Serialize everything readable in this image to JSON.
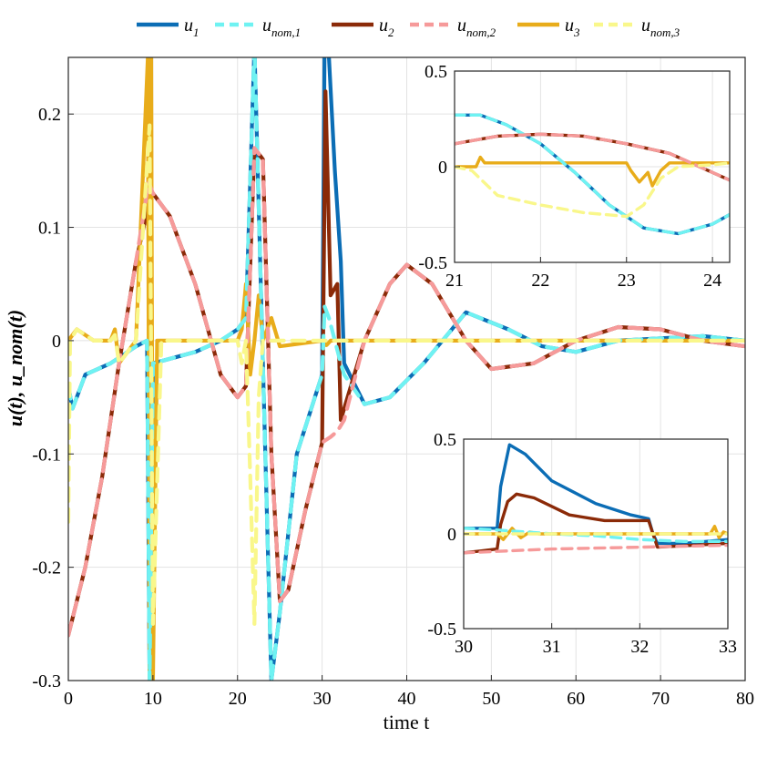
{
  "chart_data": [
    {
      "type": "line",
      "title": "",
      "xlabel": "time t",
      "ylabel": "u(t), u_nom(t)",
      "xlim": [
        0,
        80
      ],
      "ylim": [
        -0.3,
        0.25
      ],
      "xticks": [
        "0",
        "10",
        "20",
        "30",
        "40",
        "50",
        "60",
        "70",
        "80"
      ],
      "yticks": [
        "-0.3",
        "-0.2",
        "-0.1",
        "0",
        "0.1",
        "0.2"
      ],
      "grid": true,
      "legend_position": "top",
      "legend": [
        {
          "key": "u1",
          "name": "u",
          "sub": "1",
          "color": "#0b6db5",
          "dash": false
        },
        {
          "key": "unom1",
          "name": "u",
          "sub": "nom,1",
          "color": "#6ff2f2",
          "dash": true
        },
        {
          "key": "u2",
          "name": "u",
          "sub": "2",
          "color": "#8b2a08",
          "dash": false
        },
        {
          "key": "unom2",
          "name": "u",
          "sub": "nom,2",
          "color": "#f69a9a",
          "dash": true
        },
        {
          "key": "u3",
          "name": "u",
          "sub": "3",
          "color": "#e8ac1a",
          "dash": false
        },
        {
          "key": "unom3",
          "name": "u",
          "sub": "nom,3",
          "color": "#f9f78b",
          "dash": true
        }
      ],
      "series": [
        {
          "name": "u1",
          "x": [
            0,
            0.5,
            2,
            5,
            8,
            9.3,
            9.6,
            10,
            11,
            15,
            18,
            20,
            21,
            22,
            23,
            24,
            25,
            27,
            30,
            30.3,
            30.8,
            31.5,
            32.2,
            32.6,
            35,
            38,
            42,
            47,
            52,
            56,
            60,
            65,
            70,
            75,
            80
          ],
          "values": [
            -0.04,
            -0.06,
            -0.03,
            -0.02,
            -0.005,
            0.0,
            -0.3,
            -0.02,
            -0.018,
            -0.01,
            0.0,
            0.01,
            0.02,
            0.26,
            -0.02,
            -0.3,
            -0.24,
            -0.1,
            -0.03,
            0.27,
            0.25,
            0.15,
            0.07,
            -0.02,
            -0.056,
            -0.05,
            -0.02,
            0.025,
            0.01,
            -0.005,
            -0.01,
            0.0,
            0.002,
            0.004,
            0.0
          ]
        },
        {
          "name": "unom1",
          "x": [
            0,
            0.5,
            2,
            5,
            8,
            9.3,
            9.6,
            10,
            11,
            15,
            18,
            20,
            21,
            22,
            23,
            24,
            25,
            27,
            30,
            30.3,
            30.8,
            31.5,
            32.2,
            32.6,
            35,
            38,
            42,
            47,
            52,
            56,
            60,
            65,
            70,
            75,
            80
          ],
          "values": [
            -0.04,
            -0.06,
            -0.03,
            -0.02,
            -0.005,
            0.0,
            -0.3,
            -0.02,
            -0.018,
            -0.01,
            0.0,
            0.01,
            0.02,
            0.26,
            -0.02,
            -0.3,
            -0.24,
            -0.1,
            -0.03,
            0.03,
            0.02,
            0.0,
            -0.02,
            -0.03,
            -0.056,
            -0.05,
            -0.02,
            0.025,
            0.01,
            -0.005,
            -0.01,
            0.0,
            0.002,
            0.004,
            0.0
          ]
        },
        {
          "name": "u2",
          "x": [
            0,
            2,
            4,
            6,
            8,
            9.5,
            10,
            12,
            15,
            18,
            20,
            21,
            22,
            23,
            24,
            25,
            26,
            28,
            30,
            30.4,
            31,
            31.8,
            32.2,
            32.6,
            35,
            38,
            40,
            43,
            47,
            50,
            55,
            60,
            65,
            70,
            75,
            80
          ],
          "values": [
            -0.26,
            -0.2,
            -0.12,
            -0.02,
            0.07,
            0.12,
            0.13,
            0.11,
            0.05,
            -0.03,
            -0.05,
            -0.04,
            0.17,
            0.16,
            -0.1,
            -0.23,
            -0.22,
            -0.15,
            -0.09,
            0.22,
            0.04,
            0.05,
            -0.07,
            -0.06,
            0.0,
            0.05,
            0.067,
            0.05,
            0.0,
            -0.025,
            -0.02,
            0.0,
            0.012,
            0.01,
            0.0,
            -0.005
          ]
        },
        {
          "name": "unom2",
          "x": [
            0,
            2,
            4,
            6,
            8,
            9.5,
            10,
            12,
            15,
            18,
            20,
            21,
            22,
            23,
            24,
            25,
            26,
            28,
            30,
            30.4,
            31,
            31.8,
            32.2,
            32.6,
            35,
            38,
            40,
            43,
            47,
            50,
            55,
            60,
            65,
            70,
            75,
            80
          ],
          "values": [
            -0.26,
            -0.2,
            -0.12,
            -0.02,
            0.07,
            0.14,
            0.13,
            0.11,
            0.05,
            -0.03,
            -0.05,
            -0.04,
            0.17,
            0.16,
            -0.1,
            -0.23,
            -0.22,
            -0.15,
            -0.09,
            -0.088,
            -0.085,
            -0.08,
            -0.075,
            -0.07,
            0.0,
            0.05,
            0.067,
            0.05,
            0.0,
            -0.025,
            -0.02,
            0.0,
            0.012,
            0.01,
            0.0,
            -0.005
          ]
        },
        {
          "name": "u3",
          "x": [
            0,
            1,
            3,
            5,
            5.5,
            6,
            8,
            9.4,
            9.6,
            9.8,
            10,
            10.5,
            12,
            20,
            20.5,
            21,
            21.5,
            22,
            22.5,
            23,
            24,
            25,
            30,
            30.5,
            31,
            32,
            33,
            35,
            40,
            80
          ],
          "values": [
            0.0,
            0.01,
            0.0,
            0.0,
            0.01,
            -0.02,
            0.0,
            0.25,
            -0.3,
            0.25,
            -0.3,
            0.0,
            0.0,
            0.0,
            0.01,
            0.05,
            -0.03,
            0.0,
            0.04,
            0.0,
            0.02,
            -0.005,
            0.0,
            -0.004,
            0.0,
            0.0,
            0.0,
            0.0,
            0.0,
            0.0
          ]
        },
        {
          "name": "unom3",
          "x": [
            0,
            0.2,
            1,
            3,
            5,
            5.5,
            6,
            8,
            9.6,
            10,
            11,
            15,
            20,
            20.5,
            21,
            21.5,
            22,
            22.5,
            23,
            24,
            25,
            30,
            35,
            40,
            80
          ],
          "values": [
            -0.16,
            0.0,
            0.01,
            0.0,
            0.0,
            0.005,
            -0.02,
            0.0,
            0.19,
            -0.25,
            0.0,
            0.0,
            0.0,
            -0.02,
            0.0,
            -0.12,
            -0.25,
            -0.05,
            0.0,
            0.0,
            0.0,
            0.0,
            0.0,
            0.0,
            0.0
          ]
        }
      ]
    },
    {
      "type": "line",
      "title": "",
      "inset": "zoom t = 21 to 24.2",
      "xlim": [
        21,
        24.2
      ],
      "ylim": [
        -0.5,
        0.5
      ],
      "xticks": [
        "21",
        "22",
        "23",
        "24"
      ],
      "yticks": [
        "-0.5",
        "0",
        "0.5"
      ],
      "grid": true,
      "series": [
        {
          "name": "u1",
          "x": [
            21,
            21.3,
            21.6,
            22,
            22.4,
            22.8,
            23.2,
            23.6,
            24,
            24.2
          ],
          "values": [
            0.27,
            0.27,
            0.22,
            0.12,
            -0.03,
            -0.2,
            -0.32,
            -0.35,
            -0.3,
            -0.25
          ]
        },
        {
          "name": "unom1",
          "x": [
            21,
            21.3,
            21.6,
            22,
            22.4,
            22.8,
            23.2,
            23.6,
            24,
            24.2
          ],
          "values": [
            0.27,
            0.27,
            0.22,
            0.12,
            -0.03,
            -0.2,
            -0.32,
            -0.35,
            -0.3,
            -0.25
          ]
        },
        {
          "name": "u2",
          "x": [
            21,
            21.5,
            22,
            22.5,
            23,
            23.5,
            24,
            24.2
          ],
          "values": [
            0.12,
            0.16,
            0.17,
            0.16,
            0.12,
            0.07,
            -0.03,
            -0.07
          ]
        },
        {
          "name": "unom2",
          "x": [
            21,
            21.5,
            22,
            22.5,
            23,
            23.5,
            24,
            24.2
          ],
          "values": [
            0.12,
            0.16,
            0.17,
            0.16,
            0.12,
            0.07,
            -0.03,
            -0.07
          ]
        },
        {
          "name": "u3",
          "x": [
            21,
            21.25,
            21.3,
            21.35,
            21.5,
            22,
            23,
            23.05,
            23.15,
            23.25,
            23.3,
            23.4,
            23.5,
            24,
            24.2
          ],
          "values": [
            0.0,
            0.0,
            0.05,
            0.02,
            0.02,
            0.02,
            0.02,
            -0.02,
            -0.08,
            -0.03,
            -0.1,
            -0.02,
            0.02,
            0.02,
            0.02
          ]
        },
        {
          "name": "unom3",
          "x": [
            21,
            21.2,
            21.5,
            22,
            22.5,
            23,
            23.2,
            23.4,
            23.6,
            24,
            24.2
          ],
          "values": [
            0.0,
            -0.02,
            -0.15,
            -0.2,
            -0.24,
            -0.26,
            -0.2,
            -0.06,
            0.0,
            0.01,
            0.02
          ]
        }
      ]
    },
    {
      "type": "line",
      "title": "",
      "inset": "zoom t = 30 to 33",
      "xlim": [
        30,
        33
      ],
      "ylim": [
        -0.5,
        0.5
      ],
      "xticks": [
        "30",
        "31",
        "32",
        "33"
      ],
      "yticks": [
        "-0.5",
        "0",
        "0.5"
      ],
      "grid": true,
      "series": [
        {
          "name": "u1",
          "x": [
            30,
            30.38,
            30.42,
            30.52,
            30.7,
            31,
            31.5,
            31.9,
            32.1,
            32.15,
            32.2,
            32.5,
            33
          ],
          "values": [
            0.03,
            0.03,
            0.25,
            0.47,
            0.42,
            0.28,
            0.16,
            0.1,
            0.08,
            0.0,
            -0.05,
            -0.05,
            -0.03
          ]
        },
        {
          "name": "unom1",
          "x": [
            30,
            30.4,
            31,
            31.5,
            32,
            32.5,
            33
          ],
          "values": [
            0.03,
            0.02,
            0.0,
            -0.01,
            -0.03,
            -0.04,
            -0.04
          ]
        },
        {
          "name": "u2",
          "x": [
            30,
            30.2,
            30.38,
            30.42,
            30.5,
            30.6,
            30.8,
            31.2,
            31.6,
            32.1,
            32.15,
            32.2,
            32.6,
            33
          ],
          "values": [
            -0.1,
            -0.09,
            -0.08,
            0.05,
            0.17,
            0.21,
            0.19,
            0.1,
            0.07,
            0.07,
            0.0,
            -0.07,
            -0.06,
            -0.05
          ]
        },
        {
          "name": "unom2",
          "x": [
            30,
            30.5,
            31,
            31.5,
            32,
            32.5,
            33
          ],
          "values": [
            -0.1,
            -0.09,
            -0.08,
            -0.075,
            -0.07,
            -0.065,
            -0.06
          ]
        },
        {
          "name": "u3",
          "x": [
            30,
            30.38,
            30.45,
            30.55,
            30.65,
            30.75,
            30.85,
            31,
            31.5,
            32,
            32.5,
            32.8,
            32.85,
            32.9,
            32.95,
            33
          ],
          "values": [
            0.0,
            0.0,
            -0.03,
            0.03,
            -0.02,
            0.01,
            0.0,
            0.0,
            0.0,
            0.0,
            0.0,
            0.0,
            0.04,
            -0.02,
            0.01,
            0.0
          ]
        },
        {
          "name": "unom3",
          "x": [
            30,
            31,
            32,
            32.6,
            33
          ],
          "values": [
            0.0,
            0.0,
            0.0,
            0.0,
            0.0
          ]
        }
      ]
    }
  ]
}
